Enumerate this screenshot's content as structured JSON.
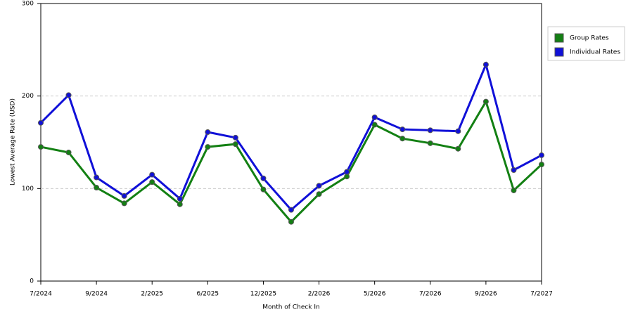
{
  "chart_data": {
    "type": "line",
    "x_label": "Month of Check In",
    "y_label": "Lowest Average Rate (USD)",
    "categories": [
      "7/2024",
      null,
      "9/2024",
      null,
      "2/2025",
      null,
      "6/2025",
      null,
      "12/2025",
      null,
      "2/2026",
      null,
      "5/2026",
      null,
      "7/2026",
      null,
      "9/2026",
      null,
      "7/2027"
    ],
    "series": [
      {
        "name": "Group Rates",
        "color": "#138013",
        "values": [
          145,
          139,
          101,
          84,
          107,
          83,
          145,
          148,
          99,
          64,
          94,
          113,
          169,
          154,
          149,
          143,
          194,
          98,
          126
        ]
      },
      {
        "name": "Individual Rates",
        "color": "#1010d8",
        "values": [
          171,
          201,
          112,
          92,
          115,
          89,
          161,
          155,
          111,
          77,
          103,
          118,
          177,
          164,
          163,
          162,
          234,
          120,
          136
        ]
      }
    ],
    "ylim": [
      0,
      300
    ],
    "yticks": [
      0,
      100,
      200,
      300
    ],
    "grid": true,
    "legend": "right"
  }
}
